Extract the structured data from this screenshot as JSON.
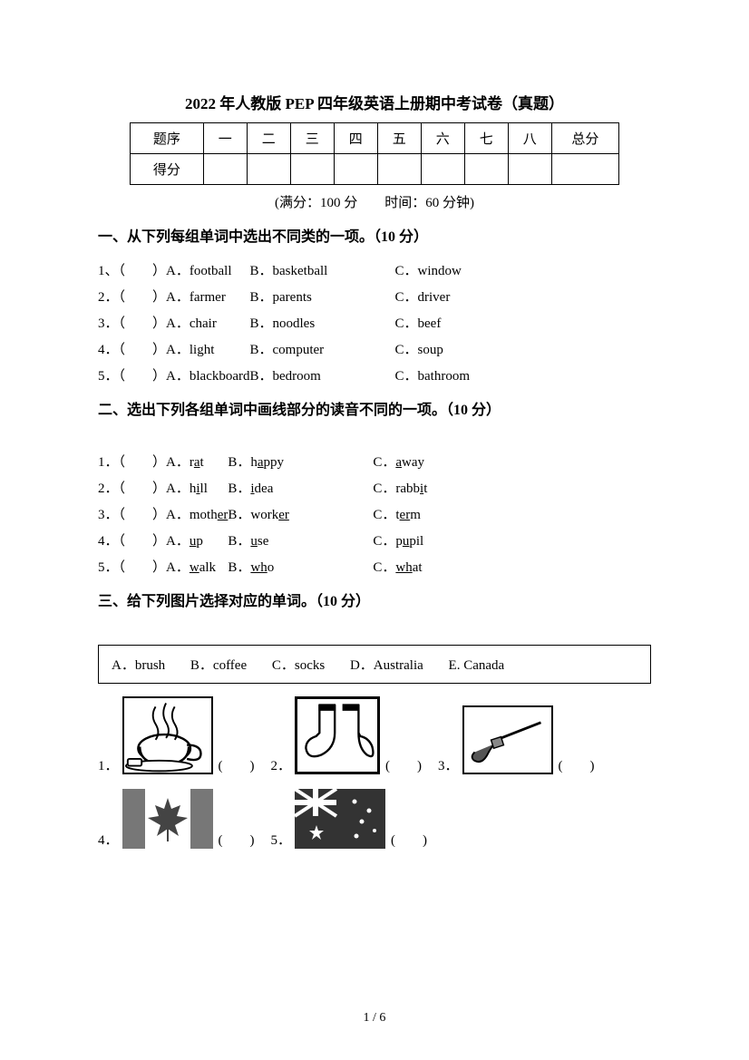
{
  "title": "2022 年人教版 PEP 四年级英语上册期中考试卷（真题）",
  "scoreTable": {
    "row1Label": "题序",
    "row2Label": "得分",
    "cols": [
      "一",
      "二",
      "三",
      "四",
      "五",
      "六",
      "七",
      "八"
    ],
    "totalLabel": "总分"
  },
  "metaLine": "(满分：100 分　　时间：60 分钟)",
  "section1": {
    "header": "一、从下列每组单词中选出不同类的一项。（10 分）",
    "items": [
      {
        "num": "1、",
        "a": "A．football",
        "b": "B．basketball",
        "c": "C．window"
      },
      {
        "num": "2．",
        "a": "A．farmer",
        "b": "B．parents",
        "c": "C．driver"
      },
      {
        "num": "3．",
        "a": "A．chair",
        "b": "B．noodles",
        "c": "C．beef"
      },
      {
        "num": "4．",
        "a": "A．light",
        "b": "B．computer",
        "c": "C．soup"
      },
      {
        "num": "5．",
        "a": "A．blackboard",
        "b": "B．bedroom",
        "c": "C．bathroom"
      }
    ]
  },
  "section2": {
    "header": "二、选出下列各组单词中画线部分的读音不同的一项。（10 分）",
    "items": [
      {
        "num": "1．",
        "a_pre": "A．r",
        "a_u": "a",
        "a_post": "t",
        "b_pre": "B．h",
        "b_u": "a",
        "b_post": "ppy",
        "c_pre": "C．",
        "c_u": "a",
        "c_post": "way"
      },
      {
        "num": "2．",
        "a_pre": "A．h",
        "a_u": "i",
        "a_post": "ll",
        "b_pre": "B．",
        "b_u": "i",
        "b_post": "dea",
        "c_pre": "C．rabb",
        "c_u": "i",
        "c_post": "t"
      },
      {
        "num": "3．",
        "a_pre": "A．moth",
        "a_u": "er",
        "a_post": "",
        "b_pre": "B．work",
        "b_u": "er",
        "b_post": "",
        "c_pre": "C．t",
        "c_u": "er",
        "c_post": "m"
      },
      {
        "num": "4．",
        "a_pre": "A．",
        "a_u": "u",
        "a_post": "p",
        "b_pre": "B．",
        "b_u": "u",
        "b_post": "se",
        "c_pre": "C．p",
        "c_u": "u",
        "c_post": "pil"
      },
      {
        "num": "5．",
        "a_pre": "A．",
        "a_u": "w",
        "a_post": "alk",
        "b_pre": "B．",
        "b_u": "wh",
        "b_post": "o",
        "c_pre": "C．",
        "c_u": "wh",
        "c_post": "at"
      }
    ]
  },
  "section3": {
    "header": "三、给下列图片选择对应的单词。（10 分）",
    "wordBox": {
      "a": "A．brush",
      "b": "B．coffee",
      "c": "C．socks",
      "d": "D．Australia",
      "e": "E. Canada"
    },
    "paren": "(　　)",
    "labels": {
      "p1": "1．",
      "p2": "2．",
      "p3": "3．",
      "p4": "4．",
      "p5": "5．"
    }
  },
  "pageNum": "1 / 6"
}
